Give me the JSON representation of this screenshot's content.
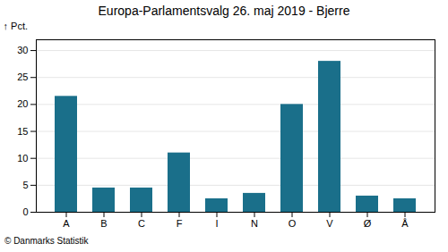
{
  "chart_data": {
    "type": "bar",
    "title": "Europa-Parlamentsvalg 26. maj 2019 - Bjerre",
    "categories": [
      "A",
      "B",
      "C",
      "F",
      "I",
      "N",
      "O",
      "V",
      "Ø",
      "Å"
    ],
    "values": [
      21.5,
      4.5,
      4.5,
      11.0,
      2.5,
      3.5,
      20.0,
      28.0,
      3.0,
      2.5
    ],
    "color": "#1a6f8a",
    "ylabel": "Pct.",
    "caption": "© Danmarks Statistik",
    "ylim": [
      0,
      32
    ],
    "yticks": [
      0,
      5,
      10,
      15,
      20,
      25,
      30
    ],
    "grid": true
  }
}
